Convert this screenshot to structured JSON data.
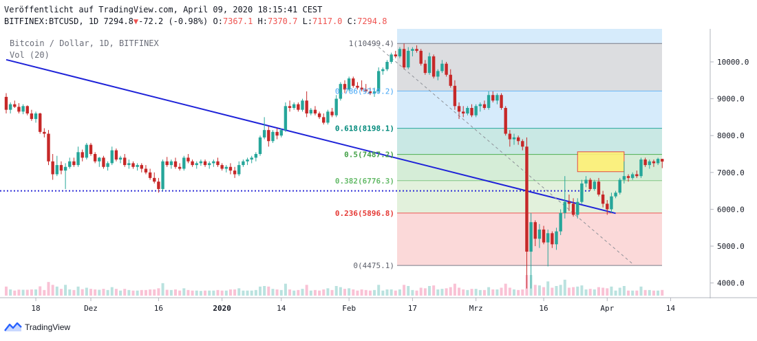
{
  "header": {
    "published": "Veröffentlicht auf TradingView.com, April 09, 2020 18:15:41 CEST",
    "symbol": "BITFINEX:BTCUSD, 1D",
    "last": "7294.8",
    "change_arrow": "▼",
    "change": "-72.2 (-0.98%)",
    "o_label": "O:",
    "o": "7367.1",
    "h_label": "H:",
    "h": "7370.7",
    "l_label": "L:",
    "l": "7117.0",
    "c_label": "C:",
    "c": "7294.8"
  },
  "legend": {
    "title": "Bitcoin / Dollar, 1D, BITFINEX",
    "volume": "Vol (20)"
  },
  "brand": "TradingView",
  "colors": {
    "up": "#26a69a",
    "down": "#c62828",
    "trendline": "#1e22d8",
    "dotted": "#2b2bd6",
    "text": "#131722"
  },
  "chart_data": {
    "type": "candlestick",
    "y_axis": {
      "min": 3700,
      "max": 10900,
      "ticks": [
        "10000.0",
        "9000.0",
        "8000.0",
        "7000.0",
        "6000.0",
        "5000.0",
        "4000.0"
      ]
    },
    "x_ticks": [
      "18",
      "Dez",
      "16",
      "2020",
      "14",
      "Feb",
      "17",
      "Mrz",
      "16",
      "Apr",
      "14"
    ],
    "fib": [
      {
        "label": "1(10499.4)",
        "value": 10499.4,
        "fill": "#dcdde0",
        "line": "#787b86",
        "text": "#5d606b"
      },
      {
        "label": "0.786(9210.2)",
        "value": 9210.2,
        "fill": "#d6ebfb",
        "line": "#64b5f6",
        "text": "#42a5f5"
      },
      {
        "label": "0.618(8198.1)",
        "value": 8198.1,
        "fill": "#c9e8e4",
        "line": "#26a69a",
        "text": "#00897b"
      },
      {
        "label": "0.5(7487.2)",
        "value": 7487.2,
        "fill": "#d5edd7",
        "line": "#4caf50",
        "text": "#43a047"
      },
      {
        "label": "0.382(6776.3)",
        "value": 6776.3,
        "fill": "#e2f1dc",
        "line": "#81c784",
        "text": "#66bb6a"
      },
      {
        "label": "0.236(5896.8)",
        "value": 5896.8,
        "fill": "#fbd9d9",
        "line": "#ef5350",
        "text": "#e53935"
      },
      {
        "label": "0(4475.1)",
        "value": 4475.1,
        "fill": null,
        "line": "#787b86",
        "text": "#5d606b"
      }
    ],
    "trendline": {
      "from": {
        "day": 0,
        "price": 10060
      },
      "to": {
        "day": 144,
        "price": 5890
      }
    },
    "dotted_support": 6500,
    "diagonal": {
      "from": {
        "day": 87,
        "price": 10499.4
      },
      "to": {
        "day": 148,
        "price": 4520
      }
    },
    "highlight_box": {
      "day_from": 135,
      "day_to": 146,
      "price_low": 7020,
      "price_high": 7560
    },
    "candles": [
      {
        "d": 0,
        "o": 9050,
        "h": 9150,
        "l": 8600,
        "c": 8700
      },
      {
        "d": 1,
        "o": 8700,
        "h": 8900,
        "l": 8600,
        "c": 8850
      },
      {
        "d": 2,
        "o": 8850,
        "h": 8950,
        "l": 8750,
        "c": 8780
      },
      {
        "d": 3,
        "o": 8780,
        "h": 8880,
        "l": 8600,
        "c": 8650
      },
      {
        "d": 4,
        "o": 8650,
        "h": 8850,
        "l": 8580,
        "c": 8800
      },
      {
        "d": 5,
        "o": 8800,
        "h": 8820,
        "l": 8550,
        "c": 8600
      },
      {
        "d": 6,
        "o": 8600,
        "h": 8700,
        "l": 8400,
        "c": 8450
      },
      {
        "d": 7,
        "o": 8450,
        "h": 8650,
        "l": 8350,
        "c": 8600
      },
      {
        "d": 8,
        "o": 8600,
        "h": 8620,
        "l": 8050,
        "c": 8100
      },
      {
        "d": 9,
        "o": 8100,
        "h": 8200,
        "l": 7950,
        "c": 8050
      },
      {
        "d": 10,
        "o": 8050,
        "h": 8150,
        "l": 7200,
        "c": 7300
      },
      {
        "d": 11,
        "o": 7300,
        "h": 7500,
        "l": 6800,
        "c": 6950
      },
      {
        "d": 12,
        "o": 6950,
        "h": 7450,
        "l": 6900,
        "c": 7200
      },
      {
        "d": 13,
        "o": 7200,
        "h": 7300,
        "l": 6950,
        "c": 7050
      },
      {
        "d": 14,
        "o": 7050,
        "h": 7250,
        "l": 6550,
        "c": 7150
      },
      {
        "d": 15,
        "o": 7150,
        "h": 7400,
        "l": 7100,
        "c": 7300
      },
      {
        "d": 16,
        "o": 7300,
        "h": 7400,
        "l": 7150,
        "c": 7200
      },
      {
        "d": 17,
        "o": 7200,
        "h": 7700,
        "l": 7150,
        "c": 7550
      },
      {
        "d": 18,
        "o": 7550,
        "h": 7620,
        "l": 7300,
        "c": 7400
      },
      {
        "d": 19,
        "o": 7400,
        "h": 7800,
        "l": 7350,
        "c": 7750
      },
      {
        "d": 20,
        "o": 7750,
        "h": 7800,
        "l": 7450,
        "c": 7500
      },
      {
        "d": 21,
        "o": 7500,
        "h": 7550,
        "l": 7250,
        "c": 7300
      },
      {
        "d": 22,
        "o": 7300,
        "h": 7420,
        "l": 7150,
        "c": 7400
      },
      {
        "d": 23,
        "o": 7400,
        "h": 7450,
        "l": 7100,
        "c": 7150
      },
      {
        "d": 24,
        "o": 7150,
        "h": 7300,
        "l": 7050,
        "c": 7250
      },
      {
        "d": 25,
        "o": 7250,
        "h": 7700,
        "l": 7200,
        "c": 7600
      },
      {
        "d": 26,
        "o": 7600,
        "h": 7650,
        "l": 7300,
        "c": 7350
      },
      {
        "d": 27,
        "o": 7350,
        "h": 7450,
        "l": 7250,
        "c": 7400
      },
      {
        "d": 28,
        "o": 7400,
        "h": 7500,
        "l": 7150,
        "c": 7200
      },
      {
        "d": 29,
        "o": 7200,
        "h": 7350,
        "l": 7100,
        "c": 7250
      },
      {
        "d": 30,
        "o": 7250,
        "h": 7300,
        "l": 7100,
        "c": 7150
      },
      {
        "d": 31,
        "o": 7150,
        "h": 7250,
        "l": 7050,
        "c": 7200
      },
      {
        "d": 32,
        "o": 7200,
        "h": 7250,
        "l": 7000,
        "c": 7100
      },
      {
        "d": 33,
        "o": 7100,
        "h": 7200,
        "l": 6950,
        "c": 7000
      },
      {
        "d": 34,
        "o": 7000,
        "h": 7100,
        "l": 6800,
        "c": 6850
      },
      {
        "d": 35,
        "o": 6850,
        "h": 7000,
        "l": 6700,
        "c": 6750
      },
      {
        "d": 36,
        "o": 6750,
        "h": 6850,
        "l": 6450,
        "c": 6550
      },
      {
        "d": 37,
        "o": 6550,
        "h": 7350,
        "l": 6500,
        "c": 7300
      },
      {
        "d": 38,
        "o": 7300,
        "h": 7420,
        "l": 7150,
        "c": 7200
      },
      {
        "d": 39,
        "o": 7200,
        "h": 7350,
        "l": 7100,
        "c": 7300
      },
      {
        "d": 40,
        "o": 7300,
        "h": 7400,
        "l": 7100,
        "c": 7150
      },
      {
        "d": 41,
        "o": 7150,
        "h": 7250,
        "l": 7050,
        "c": 7100
      },
      {
        "d": 42,
        "o": 7100,
        "h": 7450,
        "l": 7050,
        "c": 7400
      },
      {
        "d": 43,
        "o": 7400,
        "h": 7500,
        "l": 7250,
        "c": 7300
      },
      {
        "d": 44,
        "o": 7300,
        "h": 7350,
        "l": 7150,
        "c": 7200
      },
      {
        "d": 45,
        "o": 7200,
        "h": 7300,
        "l": 7100,
        "c": 7250
      },
      {
        "d": 46,
        "o": 7250,
        "h": 7350,
        "l": 7180,
        "c": 7300
      },
      {
        "d": 47,
        "o": 7300,
        "h": 7350,
        "l": 7150,
        "c": 7200
      },
      {
        "d": 48,
        "o": 7200,
        "h": 7300,
        "l": 7100,
        "c": 7250
      },
      {
        "d": 49,
        "o": 7250,
        "h": 7350,
        "l": 7150,
        "c": 7300
      },
      {
        "d": 50,
        "o": 7300,
        "h": 7400,
        "l": 7150,
        "c": 7200
      },
      {
        "d": 51,
        "o": 7200,
        "h": 7250,
        "l": 7050,
        "c": 7100
      },
      {
        "d": 52,
        "o": 7100,
        "h": 7200,
        "l": 7000,
        "c": 7150
      },
      {
        "d": 53,
        "o": 7150,
        "h": 7250,
        "l": 6950,
        "c": 7050
      },
      {
        "d": 54,
        "o": 7050,
        "h": 7150,
        "l": 6850,
        "c": 6950
      },
      {
        "d": 55,
        "o": 6950,
        "h": 7300,
        "l": 6900,
        "c": 7200
      },
      {
        "d": 56,
        "o": 7200,
        "h": 7350,
        "l": 7150,
        "c": 7300
      },
      {
        "d": 57,
        "o": 7300,
        "h": 7400,
        "l": 7200,
        "c": 7350
      },
      {
        "d": 58,
        "o": 7350,
        "h": 7450,
        "l": 7250,
        "c": 7400
      },
      {
        "d": 59,
        "o": 7400,
        "h": 7550,
        "l": 7300,
        "c": 7500
      },
      {
        "d": 60,
        "o": 7500,
        "h": 8000,
        "l": 7450,
        "c": 7950
      },
      {
        "d": 61,
        "o": 7950,
        "h": 8500,
        "l": 7900,
        "c": 8150
      },
      {
        "d": 62,
        "o": 8150,
        "h": 8250,
        "l": 7700,
        "c": 7850
      },
      {
        "d": 63,
        "o": 7850,
        "h": 8150,
        "l": 7800,
        "c": 8100
      },
      {
        "d": 64,
        "o": 8100,
        "h": 8200,
        "l": 7900,
        "c": 8000
      },
      {
        "d": 65,
        "o": 8000,
        "h": 8200,
        "l": 7950,
        "c": 8150
      },
      {
        "d": 66,
        "o": 8150,
        "h": 8900,
        "l": 8100,
        "c": 8800
      },
      {
        "d": 67,
        "o": 8800,
        "h": 8950,
        "l": 8650,
        "c": 8750
      },
      {
        "d": 68,
        "o": 8750,
        "h": 8900,
        "l": 8700,
        "c": 8850
      },
      {
        "d": 69,
        "o": 8850,
        "h": 8900,
        "l": 8650,
        "c": 8700
      },
      {
        "d": 70,
        "o": 8700,
        "h": 9000,
        "l": 8650,
        "c": 8950
      },
      {
        "d": 71,
        "o": 8950,
        "h": 9200,
        "l": 8500,
        "c": 8600
      },
      {
        "d": 72,
        "o": 8600,
        "h": 8750,
        "l": 8550,
        "c": 8700
      },
      {
        "d": 73,
        "o": 8700,
        "h": 8800,
        "l": 8550,
        "c": 8600
      },
      {
        "d": 74,
        "o": 8600,
        "h": 8650,
        "l": 8450,
        "c": 8500
      },
      {
        "d": 75,
        "o": 8500,
        "h": 8600,
        "l": 8300,
        "c": 8350
      },
      {
        "d": 76,
        "o": 8350,
        "h": 8700,
        "l": 8300,
        "c": 8650
      },
      {
        "d": 77,
        "o": 8650,
        "h": 8750,
        "l": 8500,
        "c": 8550
      },
      {
        "d": 78,
        "o": 8550,
        "h": 9100,
        "l": 8500,
        "c": 9000
      },
      {
        "d": 79,
        "o": 9000,
        "h": 9450,
        "l": 8950,
        "c": 9400
      },
      {
        "d": 80,
        "o": 9400,
        "h": 9500,
        "l": 9150,
        "c": 9250
      },
      {
        "d": 81,
        "o": 9250,
        "h": 9600,
        "l": 9200,
        "c": 9550
      },
      {
        "d": 82,
        "o": 9550,
        "h": 9600,
        "l": 9300,
        "c": 9350
      },
      {
        "d": 83,
        "o": 9350,
        "h": 9450,
        "l": 9250,
        "c": 9300
      },
      {
        "d": 84,
        "o": 9300,
        "h": 9500,
        "l": 9200,
        "c": 9250
      },
      {
        "d": 85,
        "o": 9250,
        "h": 9400,
        "l": 9150,
        "c": 9200
      },
      {
        "d": 86,
        "o": 9200,
        "h": 9300,
        "l": 9100,
        "c": 9150
      },
      {
        "d": 87,
        "o": 9150,
        "h": 9300,
        "l": 9050,
        "c": 9200
      },
      {
        "d": 88,
        "o": 9200,
        "h": 9850,
        "l": 9150,
        "c": 9750
      },
      {
        "d": 89,
        "o": 9750,
        "h": 9850,
        "l": 9650,
        "c": 9800
      },
      {
        "d": 90,
        "o": 9800,
        "h": 10050,
        "l": 9750,
        "c": 10000
      },
      {
        "d": 91,
        "o": 10000,
        "h": 10250,
        "l": 9950,
        "c": 10200
      },
      {
        "d": 92,
        "o": 10200,
        "h": 10300,
        "l": 10100,
        "c": 10150
      },
      {
        "d": 93,
        "o": 10150,
        "h": 10400,
        "l": 10100,
        "c": 10350
      },
      {
        "d": 94,
        "o": 10350,
        "h": 10499,
        "l": 9800,
        "c": 9850
      },
      {
        "d": 95,
        "o": 9850,
        "h": 10400,
        "l": 9800,
        "c": 10300
      },
      {
        "d": 96,
        "o": 10300,
        "h": 10400,
        "l": 10150,
        "c": 10350
      },
      {
        "d": 97,
        "o": 10350,
        "h": 10450,
        "l": 10250,
        "c": 10300
      },
      {
        "d": 98,
        "o": 10300,
        "h": 10350,
        "l": 9900,
        "c": 9950
      },
      {
        "d": 99,
        "o": 9950,
        "h": 10050,
        "l": 9650,
        "c": 9700
      },
      {
        "d": 100,
        "o": 9700,
        "h": 10250,
        "l": 9650,
        "c": 10150
      },
      {
        "d": 101,
        "o": 10150,
        "h": 10200,
        "l": 9550,
        "c": 9600
      },
      {
        "d": 102,
        "o": 9600,
        "h": 9800,
        "l": 9500,
        "c": 9750
      },
      {
        "d": 103,
        "o": 9750,
        "h": 10050,
        "l": 9700,
        "c": 9950
      },
      {
        "d": 104,
        "o": 9950,
        "h": 10000,
        "l": 9600,
        "c": 9650
      },
      {
        "d": 105,
        "o": 9650,
        "h": 9800,
        "l": 9300,
        "c": 9350
      },
      {
        "d": 106,
        "o": 9350,
        "h": 9500,
        "l": 8700,
        "c": 8800
      },
      {
        "d": 107,
        "o": 8800,
        "h": 8900,
        "l": 8450,
        "c": 8650
      },
      {
        "d": 108,
        "o": 8650,
        "h": 8800,
        "l": 8500,
        "c": 8600
      },
      {
        "d": 109,
        "o": 8600,
        "h": 8800,
        "l": 8550,
        "c": 8750
      },
      {
        "d": 110,
        "o": 8750,
        "h": 8850,
        "l": 8500,
        "c": 8550
      },
      {
        "d": 111,
        "o": 8550,
        "h": 8850,
        "l": 8500,
        "c": 8800
      },
      {
        "d": 112,
        "o": 8800,
        "h": 8900,
        "l": 8650,
        "c": 8850
      },
      {
        "d": 113,
        "o": 8850,
        "h": 8950,
        "l": 8700,
        "c": 8750
      },
      {
        "d": 114,
        "o": 8750,
        "h": 9200,
        "l": 8700,
        "c": 9100
      },
      {
        "d": 115,
        "o": 9100,
        "h": 9200,
        "l": 8900,
        "c": 8950
      },
      {
        "d": 116,
        "o": 8950,
        "h": 9150,
        "l": 8850,
        "c": 9100
      },
      {
        "d": 117,
        "o": 9100,
        "h": 9150,
        "l": 8700,
        "c": 8750
      },
      {
        "d": 118,
        "o": 8750,
        "h": 8800,
        "l": 8000,
        "c": 8050
      },
      {
        "d": 119,
        "o": 8050,
        "h": 8150,
        "l": 7700,
        "c": 7900
      },
      {
        "d": 120,
        "o": 7900,
        "h": 8050,
        "l": 7750,
        "c": 7950
      },
      {
        "d": 121,
        "o": 7950,
        "h": 8000,
        "l": 7750,
        "c": 7850
      },
      {
        "d": 122,
        "o": 7850,
        "h": 7900,
        "l": 7600,
        "c": 7700
      },
      {
        "d": 123,
        "o": 7700,
        "h": 7950,
        "l": 3850,
        "c": 4850
      },
      {
        "d": 124,
        "o": 4850,
        "h": 5900,
        "l": 3850,
        "c": 5650
      },
      {
        "d": 125,
        "o": 5650,
        "h": 5700,
        "l": 5000,
        "c": 5200
      },
      {
        "d": 126,
        "o": 5200,
        "h": 5600,
        "l": 4950,
        "c": 5450
      },
      {
        "d": 127,
        "o": 5450,
        "h": 5550,
        "l": 5050,
        "c": 5100
      },
      {
        "d": 128,
        "o": 5100,
        "h": 5450,
        "l": 4450,
        "c": 5350
      },
      {
        "d": 129,
        "o": 5350,
        "h": 5400,
        "l": 4950,
        "c": 5050
      },
      {
        "d": 130,
        "o": 5050,
        "h": 5500,
        "l": 4900,
        "c": 5400
      },
      {
        "d": 131,
        "o": 5400,
        "h": 6000,
        "l": 5300,
        "c": 5900
      },
      {
        "d": 132,
        "o": 5900,
        "h": 6900,
        "l": 5750,
        "c": 6200
      },
      {
        "d": 133,
        "o": 6200,
        "h": 6400,
        "l": 5950,
        "c": 6150
      },
      {
        "d": 134,
        "o": 6150,
        "h": 6300,
        "l": 5800,
        "c": 5850
      },
      {
        "d": 135,
        "o": 5850,
        "h": 6300,
        "l": 5750,
        "c": 6200
      },
      {
        "d": 136,
        "o": 6200,
        "h": 6800,
        "l": 6150,
        "c": 6700
      },
      {
        "d": 137,
        "o": 6700,
        "h": 6900,
        "l": 6600,
        "c": 6800
      },
      {
        "d": 138,
        "o": 6800,
        "h": 6850,
        "l": 6500,
        "c": 6550
      },
      {
        "d": 139,
        "o": 6550,
        "h": 6800,
        "l": 6500,
        "c": 6750
      },
      {
        "d": 140,
        "o": 6750,
        "h": 6850,
        "l": 6350,
        "c": 6400
      },
      {
        "d": 141,
        "o": 6400,
        "h": 6500,
        "l": 6050,
        "c": 6150
      },
      {
        "d": 142,
        "o": 6150,
        "h": 6250,
        "l": 5850,
        "c": 6000
      },
      {
        "d": 143,
        "o": 6000,
        "h": 6450,
        "l": 5900,
        "c": 6350
      },
      {
        "d": 144,
        "o": 6350,
        "h": 6500,
        "l": 6300,
        "c": 6450
      },
      {
        "d": 145,
        "o": 6450,
        "h": 6850,
        "l": 6400,
        "c": 6800
      },
      {
        "d": 146,
        "o": 6800,
        "h": 7300,
        "l": 6700,
        "c": 6900
      },
      {
        "d": 147,
        "o": 6900,
        "h": 6950,
        "l": 6750,
        "c": 6850
      },
      {
        "d": 148,
        "o": 6850,
        "h": 7000,
        "l": 6800,
        "c": 6950
      },
      {
        "d": 149,
        "o": 6950,
        "h": 7050,
        "l": 6850,
        "c": 6900
      },
      {
        "d": 150,
        "o": 6900,
        "h": 7400,
        "l": 6850,
        "c": 7350
      },
      {
        "d": 151,
        "o": 7350,
        "h": 7400,
        "l": 7150,
        "c": 7200
      },
      {
        "d": 152,
        "o": 7200,
        "h": 7350,
        "l": 7100,
        "c": 7300
      },
      {
        "d": 153,
        "o": 7300,
        "h": 7350,
        "l": 7150,
        "c": 7250
      },
      {
        "d": 154,
        "o": 7250,
        "h": 7400,
        "l": 7200,
        "c": 7367
      },
      {
        "d": 155,
        "o": 7367.1,
        "h": 7370.7,
        "l": 7117.0,
        "c": 7294.8
      }
    ]
  }
}
